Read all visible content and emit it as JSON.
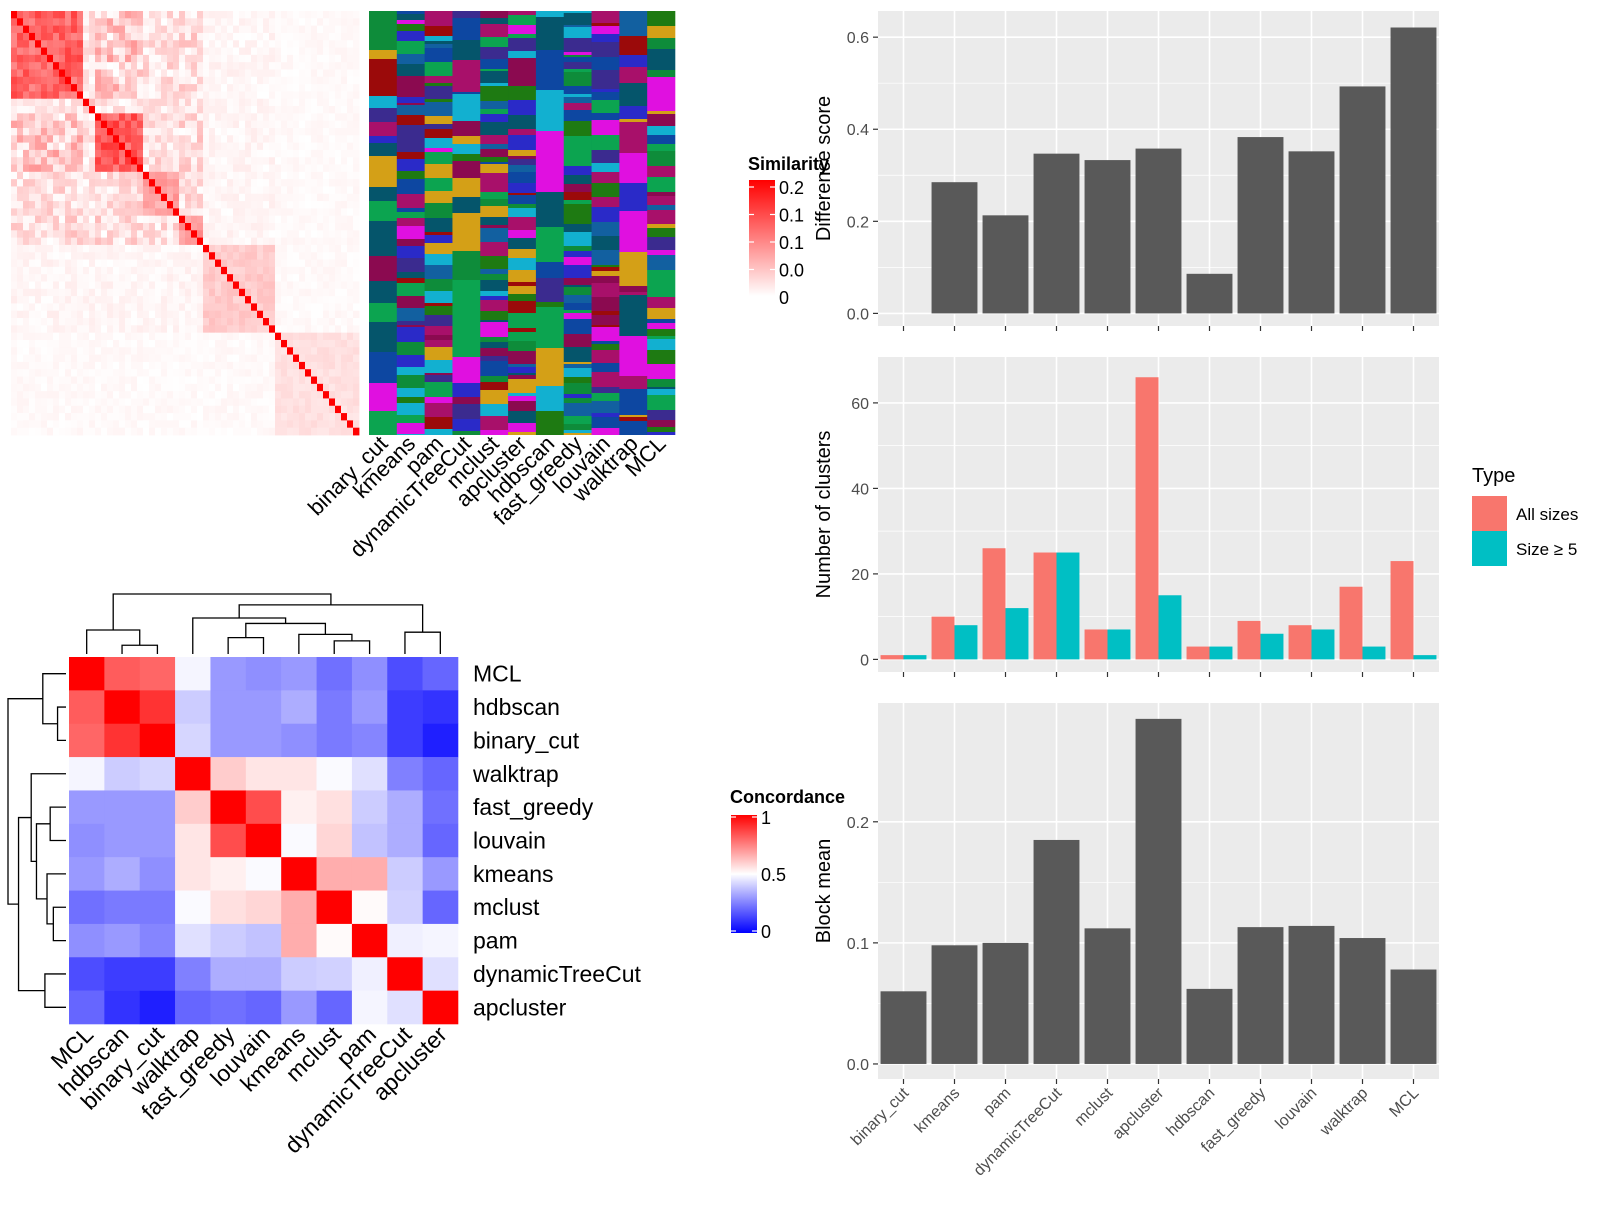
{
  "colors": {
    "panel_bg": "#EBEBEB",
    "grid": "#FFFFFF",
    "bar_dark": "#595959",
    "all_sizes": "#F8766D",
    "size_ge5": "#00BFC4",
    "heat_low": "#0000FF",
    "heat_mid": "#FFFFFF",
    "heat_high": "#FF0000",
    "class_palette": [
      "#05556B",
      "#1E7A12",
      "#0CA450",
      "#0D47A1",
      "#8B0A50",
      "#A8106A",
      "#D4A017",
      "#9B0A0A",
      "#E010E0",
      "#3B2B8F",
      "#1260A0",
      "#0E8C3A",
      "#12B0D0",
      "#2A2AC8"
    ]
  },
  "methods": [
    "binary_cut",
    "kmeans",
    "pam",
    "dynamicTreeCut",
    "mclust",
    "apcluster",
    "hdbscan",
    "fast_greedy",
    "louvain",
    "walktrap",
    "MCL"
  ],
  "similarity_heatmap": {
    "legend_title": "Similarity",
    "legend_ticks": [
      "0.2",
      "0.1",
      "0.1",
      "0.0",
      "0"
    ]
  },
  "concordance": {
    "legend_title": "Concordance",
    "legend_ticks": [
      "1",
      "0.5",
      "0"
    ],
    "order": [
      "MCL",
      "hdbscan",
      "binary_cut",
      "walktrap",
      "fast_greedy",
      "louvain",
      "kmeans",
      "mclust",
      "pam",
      "dynamicTreeCut",
      "apcluster"
    ],
    "matrix": [
      [
        1.0,
        0.82,
        0.8,
        0.48,
        0.3,
        0.28,
        0.3,
        0.22,
        0.28,
        0.15,
        0.2
      ],
      [
        0.82,
        1.0,
        0.9,
        0.4,
        0.3,
        0.3,
        0.34,
        0.24,
        0.3,
        0.12,
        0.1
      ],
      [
        0.8,
        0.9,
        1.0,
        0.42,
        0.3,
        0.3,
        0.28,
        0.24,
        0.26,
        0.12,
        0.06
      ],
      [
        0.48,
        0.4,
        0.42,
        1.0,
        0.6,
        0.55,
        0.55,
        0.49,
        0.44,
        0.25,
        0.2
      ],
      [
        0.3,
        0.3,
        0.3,
        0.6,
        1.0,
        0.85,
        0.53,
        0.56,
        0.4,
        0.34,
        0.22
      ],
      [
        0.28,
        0.3,
        0.3,
        0.55,
        0.85,
        1.0,
        0.49,
        0.58,
        0.38,
        0.34,
        0.2
      ],
      [
        0.3,
        0.34,
        0.28,
        0.55,
        0.53,
        0.49,
        1.0,
        0.66,
        0.66,
        0.4,
        0.3
      ],
      [
        0.22,
        0.24,
        0.24,
        0.49,
        0.56,
        0.58,
        0.66,
        1.0,
        0.51,
        0.41,
        0.2
      ],
      [
        0.28,
        0.3,
        0.26,
        0.44,
        0.4,
        0.38,
        0.66,
        0.51,
        1.0,
        0.47,
        0.48
      ],
      [
        0.15,
        0.12,
        0.12,
        0.25,
        0.34,
        0.34,
        0.4,
        0.41,
        0.47,
        1.0,
        0.44
      ],
      [
        0.2,
        0.1,
        0.06,
        0.2,
        0.22,
        0.2,
        0.3,
        0.2,
        0.48,
        0.44,
        1.0
      ]
    ]
  },
  "chart_data": [
    {
      "type": "bar",
      "categories": [
        "binary_cut",
        "kmeans",
        "pam",
        "dynamicTreeCut",
        "mclust",
        "apcluster",
        "hdbscan",
        "fast_greedy",
        "louvain",
        "walktrap",
        "MCL"
      ],
      "values": [
        0.0,
        0.285,
        0.213,
        0.347,
        0.333,
        0.358,
        0.086,
        0.383,
        0.352,
        0.493,
        0.621
      ],
      "title": "",
      "xlabel": "",
      "ylabel": "Difference score",
      "ylim": [
        0,
        0.65
      ],
      "yticks": [
        "0.0",
        "0.2",
        "0.4",
        "0.6"
      ],
      "grid": true
    },
    {
      "type": "bar",
      "categories": [
        "binary_cut",
        "kmeans",
        "pam",
        "dynamicTreeCut",
        "mclust",
        "apcluster",
        "hdbscan",
        "fast_greedy",
        "louvain",
        "walktrap",
        "MCL"
      ],
      "series": [
        {
          "name": "All sizes",
          "values": [
            1,
            10,
            26,
            25,
            7,
            66,
            3,
            9,
            8,
            17,
            23
          ]
        },
        {
          "name": "Size ≥ 5",
          "values": [
            1,
            8,
            12,
            25,
            7,
            15,
            3,
            6,
            7,
            3,
            1
          ]
        }
      ],
      "title": "",
      "xlabel": "",
      "ylabel": "Number of clusters",
      "ylim": [
        0,
        70
      ],
      "yticks": [
        "0",
        "20",
        "40",
        "60"
      ],
      "legend_title": "Type",
      "legend_position": "right",
      "grid": true
    },
    {
      "type": "bar",
      "categories": [
        "binary_cut",
        "kmeans",
        "pam",
        "dynamicTreeCut",
        "mclust",
        "apcluster",
        "hdbscan",
        "fast_greedy",
        "louvain",
        "walktrap",
        "MCL"
      ],
      "values": [
        0.06,
        0.098,
        0.1,
        0.185,
        0.112,
        0.285,
        0.062,
        0.113,
        0.114,
        0.104,
        0.078
      ],
      "title": "",
      "xlabel": "",
      "ylabel": "Block mean",
      "ylim": [
        0,
        0.295
      ],
      "yticks": [
        "0.0",
        "0.1",
        "0.2"
      ],
      "grid": true
    }
  ]
}
